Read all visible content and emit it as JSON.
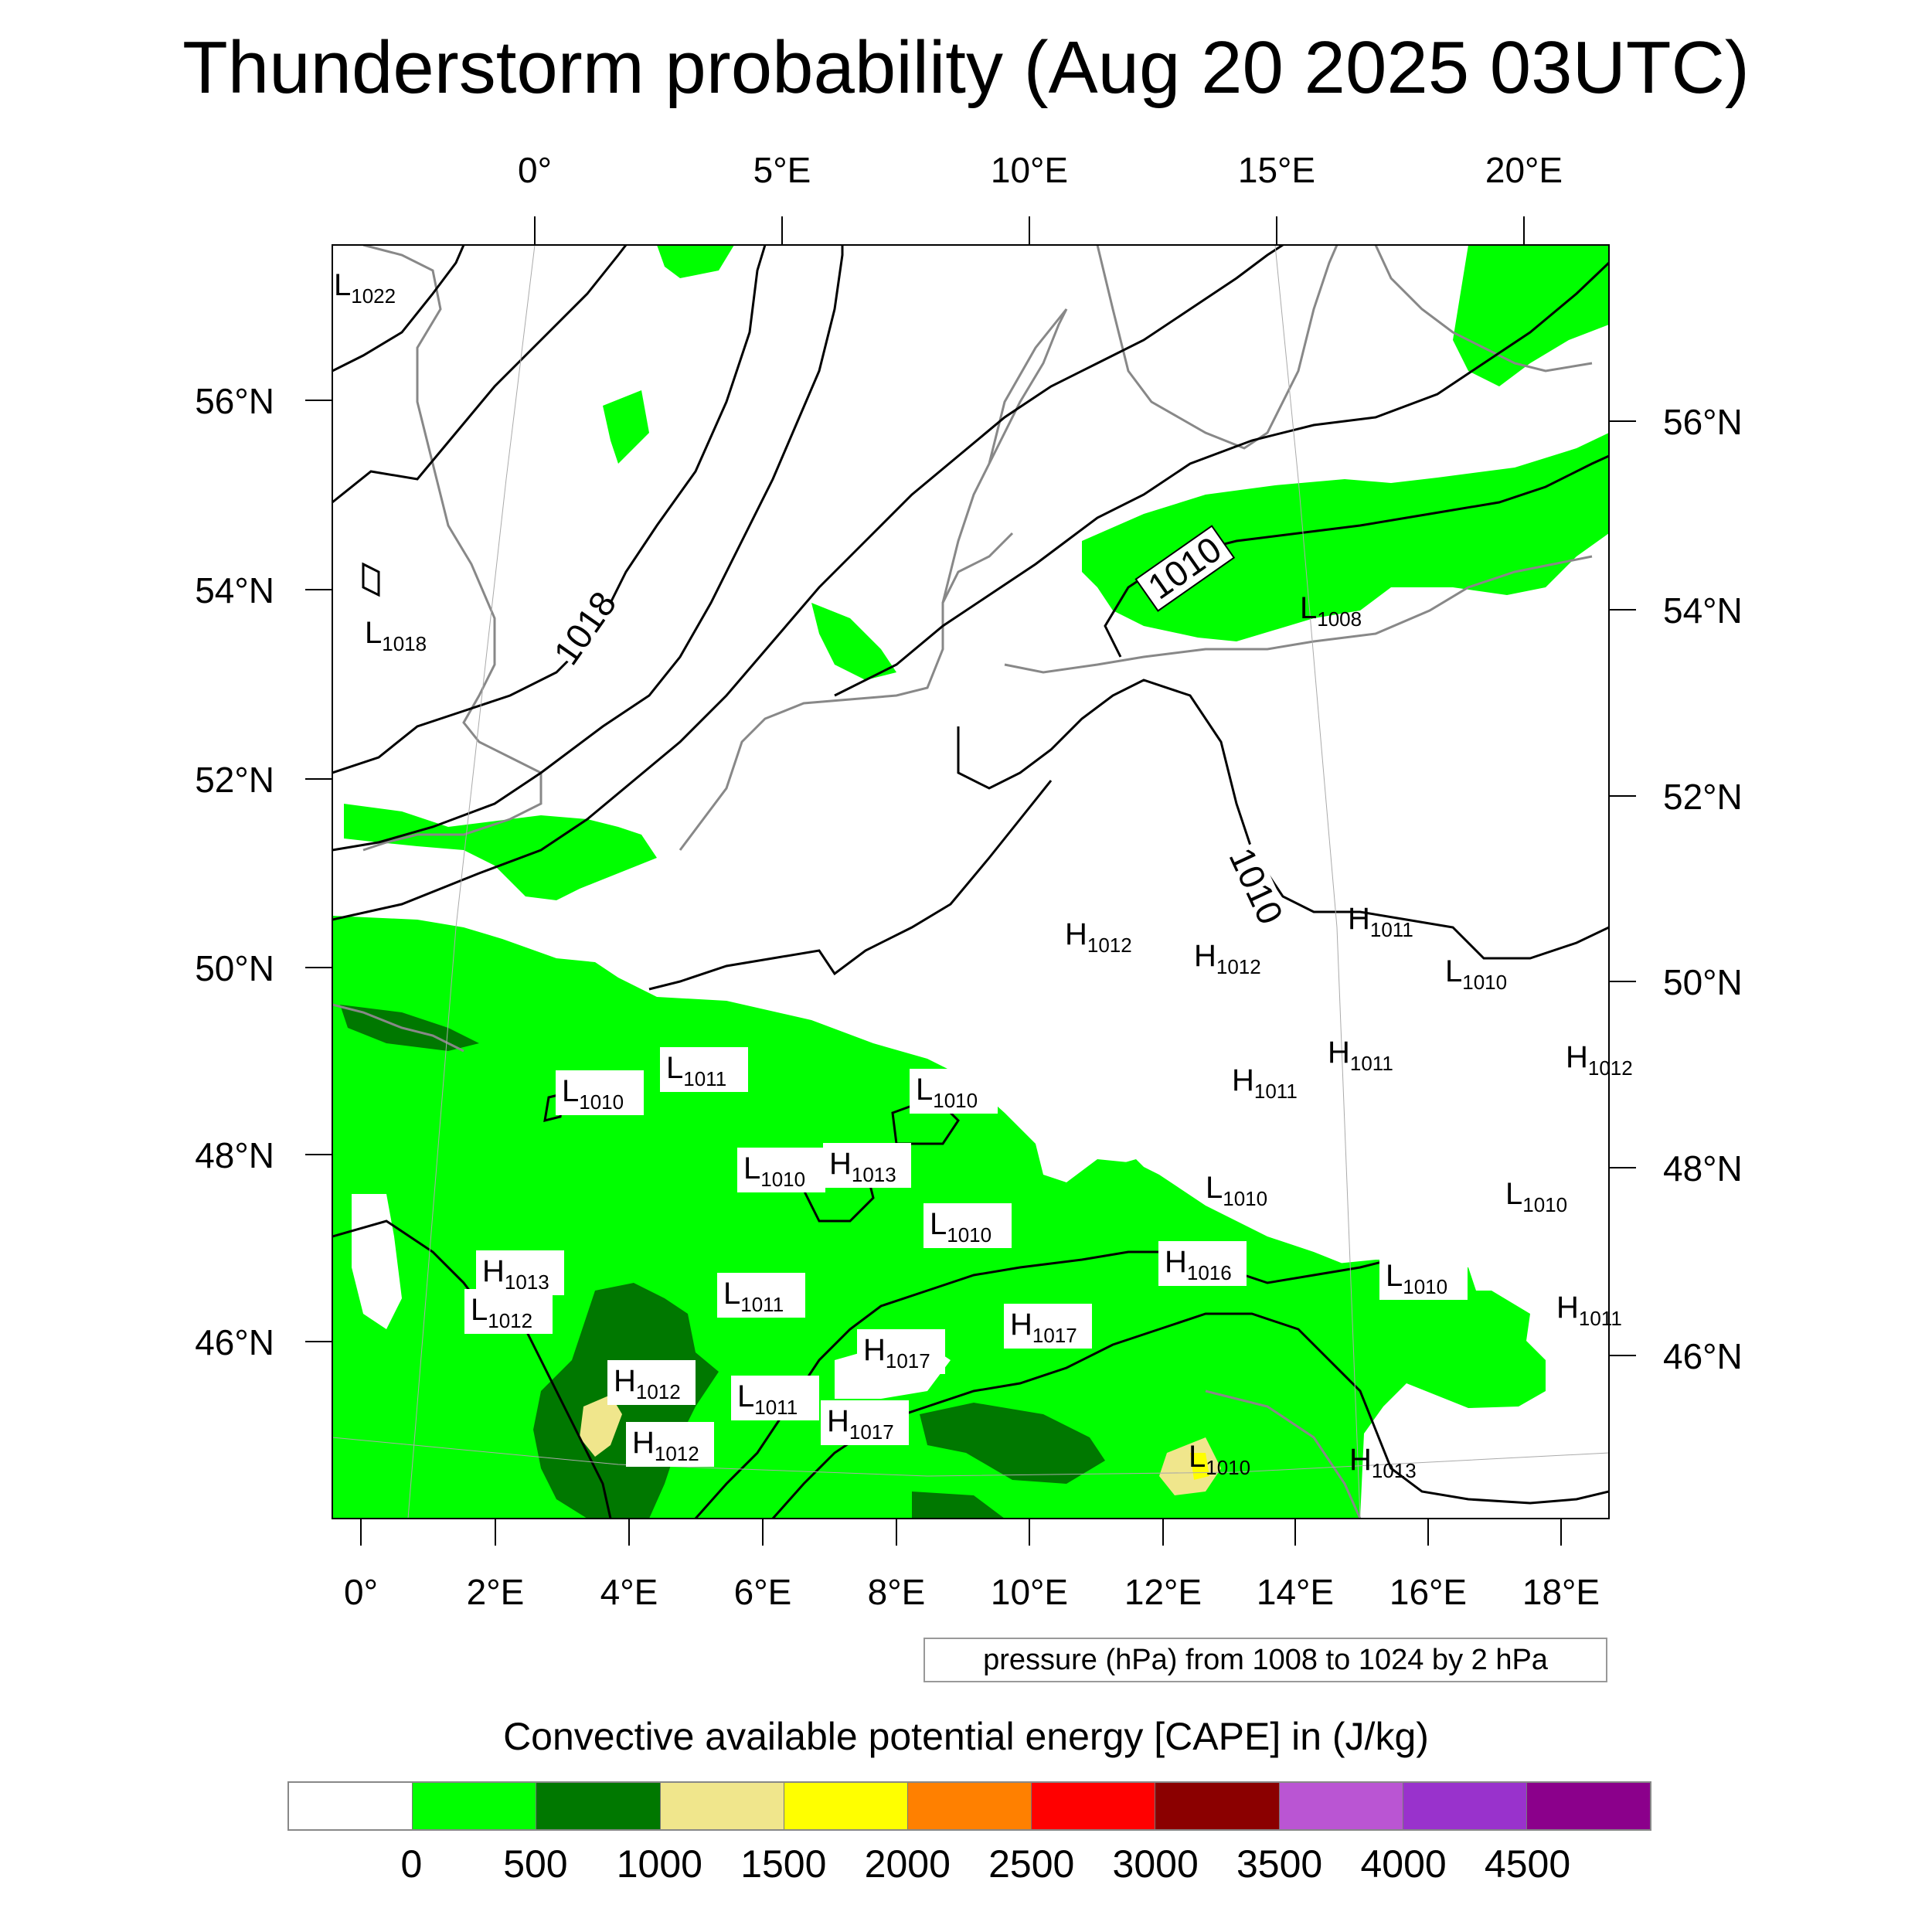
{
  "title": "Thunderstorm probability (Aug 20 2025 03UTC)",
  "map": {
    "top_longitude_labels": [
      "0°",
      "5°E",
      "10°E",
      "15°E",
      "20°E"
    ],
    "bottom_longitude_labels": [
      "0°",
      "2°E",
      "4°E",
      "6°E",
      "8°E",
      "10°E",
      "12°E",
      "14°E",
      "16°E",
      "18°E"
    ],
    "left_latitude_labels": [
      "56°N",
      "54°N",
      "52°N",
      "50°N",
      "48°N",
      "46°N"
    ],
    "right_latitude_labels": [
      "56°N",
      "54°N",
      "52°N",
      "50°N",
      "48°N",
      "46°N"
    ],
    "contour_labels": [
      "1018",
      "1010",
      "1010"
    ],
    "pressure_centers": [
      {
        "type": "L",
        "value": "1022"
      },
      {
        "type": "L",
        "value": "1018"
      },
      {
        "type": "L",
        "value": "1008"
      },
      {
        "type": "L",
        "value": "1011"
      },
      {
        "type": "L",
        "value": "1010"
      },
      {
        "type": "L",
        "value": "1010"
      },
      {
        "type": "L",
        "value": "1010"
      },
      {
        "type": "H",
        "value": "1013"
      },
      {
        "type": "H",
        "value": "1012"
      },
      {
        "type": "H",
        "value": "1012"
      },
      {
        "type": "H",
        "value": "1011"
      },
      {
        "type": "L",
        "value": "1010"
      },
      {
        "type": "H",
        "value": "1011"
      },
      {
        "type": "H",
        "value": "1011"
      },
      {
        "type": "H",
        "value": "1012"
      },
      {
        "type": "L",
        "value": "1010"
      },
      {
        "type": "L",
        "value": "1010"
      },
      {
        "type": "L",
        "value": "1010"
      },
      {
        "type": "H",
        "value": "1016"
      },
      {
        "type": "H",
        "value": "1013"
      },
      {
        "type": "L",
        "value": "1012"
      },
      {
        "type": "L",
        "value": "1011"
      },
      {
        "type": "H",
        "value": "1017"
      },
      {
        "type": "H",
        "value": "1017"
      },
      {
        "type": "H",
        "value": "1012"
      },
      {
        "type": "L",
        "value": "1011"
      },
      {
        "type": "H",
        "value": "1017"
      },
      {
        "type": "H",
        "value": "1012"
      },
      {
        "type": "L",
        "value": "1010"
      },
      {
        "type": "H",
        "value": "1013"
      },
      {
        "type": "L",
        "value": "1010"
      },
      {
        "type": "H",
        "value": "1011"
      }
    ]
  },
  "pressure_note": "pressure (hPa) from 1008 to 1024 by 2 hPa",
  "colorbar": {
    "title": "Convective available potential energy [CAPE] in (J/kg)",
    "colors": [
      "#ffffff",
      "#00ff00",
      "#007800",
      "#f0e68c",
      "#ffff00",
      "#ff8000",
      "#ff0000",
      "#8b0000",
      "#ba55d3",
      "#9932cc",
      "#8b008b"
    ],
    "tick_labels": [
      "0",
      "500",
      "1000",
      "1500",
      "2000",
      "2500",
      "3000",
      "3500",
      "4000",
      "4500"
    ]
  },
  "colors": {
    "land_cape_low": "#00ff00",
    "land_cape_mid": "#007800",
    "cape_high": "#f0e68c",
    "cape_yellow": "#ffff00",
    "coastline": "#888888",
    "isobar": "#000000"
  }
}
